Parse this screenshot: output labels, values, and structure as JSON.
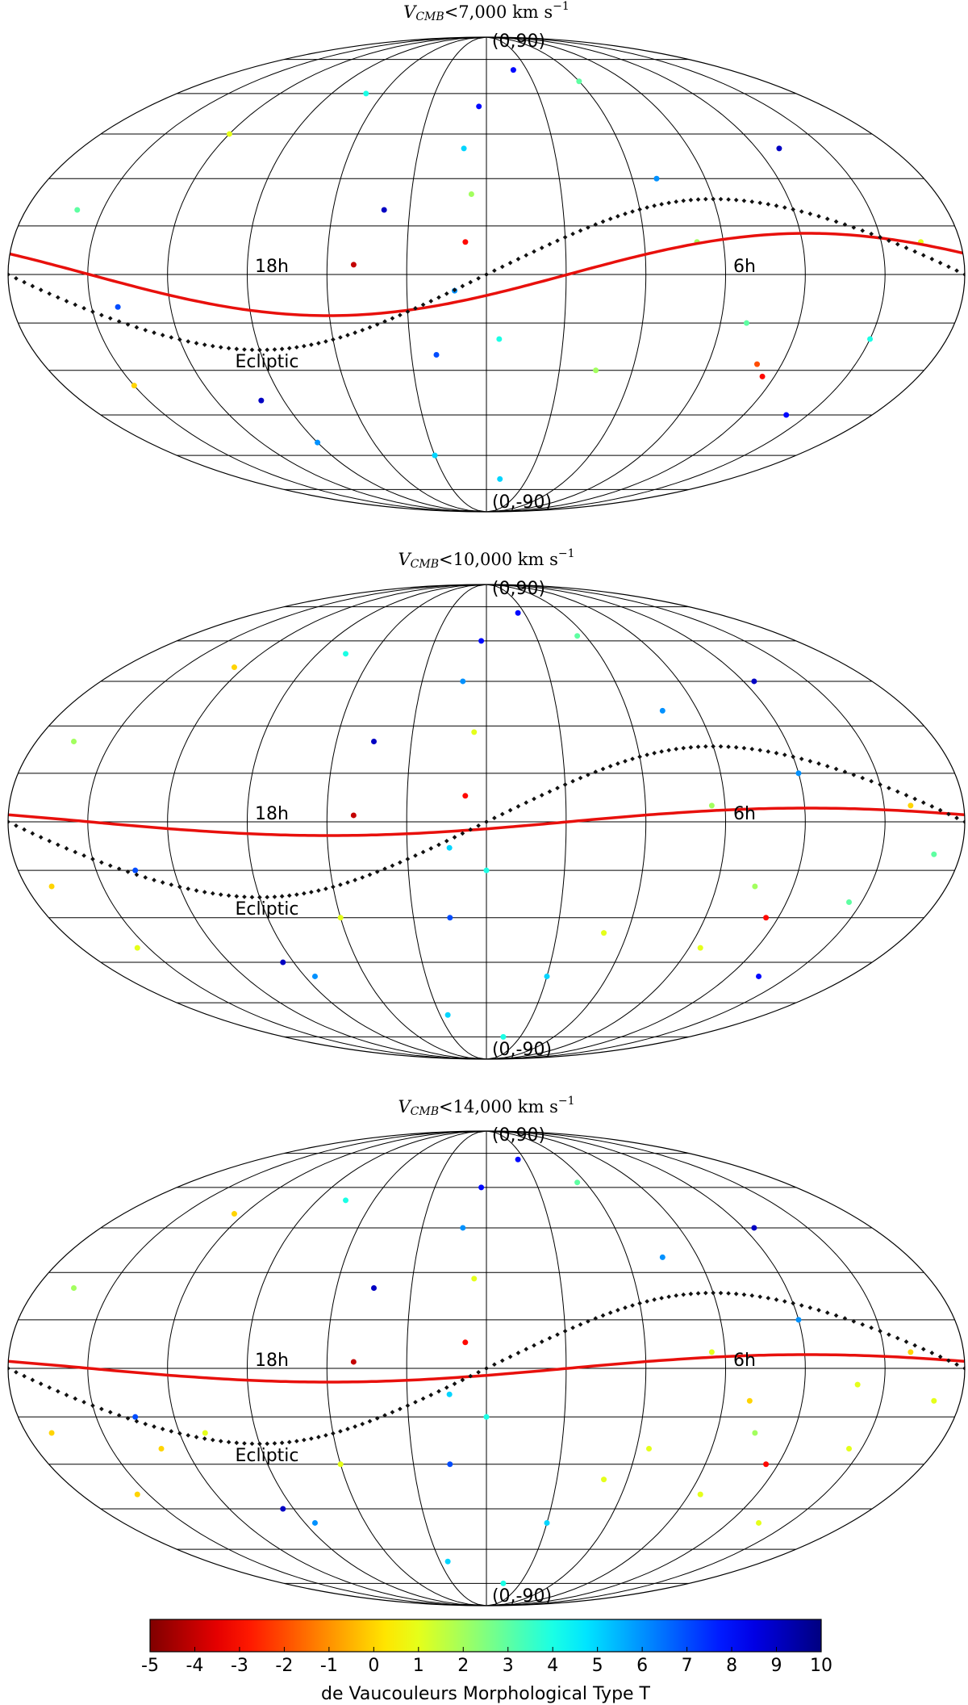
{
  "chart_data": [
    {
      "type": "scatter",
      "title_symbol": "V",
      "title_subscript": "CMB",
      "title_rest": "<7,000 km s",
      "title_superscript": "−1",
      "north_label": "(0,90)",
      "south_label": "(0,-90)",
      "left_label": "18h",
      "right_label": "6h",
      "ecliptic_label": "Ecliptic",
      "lon": [
        -8,
        -6,
        -10,
        -4,
        -12,
        -50,
        -160,
        -140,
        -120,
        -100,
        -70,
        -30,
        20,
        45,
        70,
        100,
        130,
        150,
        165,
        115,
        110,
        -90,
        -20,
        10,
        60,
        140,
        -150,
        5,
        -40,
        80
      ],
      "lat": [
        10,
        25,
        40,
        55,
        -5,
        3,
        20,
        -10,
        45,
        -40,
        60,
        -60,
        70,
        -30,
        30,
        -15,
        40,
        -20,
        10,
        -32,
        -28,
        -55,
        -25,
        -70,
        65,
        -45,
        -35,
        -20,
        20,
        10
      ],
      "T": [
        -3,
        2,
        5,
        8,
        6,
        -4,
        3,
        7,
        1,
        9,
        4,
        5,
        8,
        2,
        6,
        3,
        9,
        4,
        1,
        -3,
        -2,
        6,
        7,
        5,
        3,
        8,
        0,
        4,
        9,
        2
      ]
    },
    {
      "type": "scatter",
      "title_symbol": "V",
      "title_subscript": "CMB",
      "title_rest": "<10,000 km s",
      "title_superscript": "−1",
      "north_label": "(0,90)",
      "south_label": "(0,-90)",
      "left_label": "18h",
      "right_label": "6h",
      "ecliptic_label": "Ecliptic",
      "lon": [
        -8,
        -5,
        -11,
        -3,
        -14,
        -50,
        -165,
        -135,
        -125,
        -95,
        -75,
        -25,
        25,
        50,
        75,
        105,
        125,
        145,
        160,
        115,
        95,
        -85,
        -15,
        15,
        55,
        135,
        -155,
        0,
        -45,
        85,
        -170,
        170,
        -60,
        30,
        120
      ],
      "lat": [
        8,
        28,
        45,
        60,
        -8,
        2,
        25,
        -15,
        50,
        -45,
        55,
        -65,
        72,
        -35,
        35,
        -20,
        45,
        -25,
        5,
        -30,
        -40,
        -50,
        -30,
        -75,
        62,
        -50,
        -40,
        -15,
        25,
        5,
        -20,
        -10,
        -30,
        -50,
        15
      ],
      "T": [
        -3,
        1,
        6,
        8,
        5,
        -4,
        2,
        7,
        0,
        9,
        4,
        5,
        8,
        1,
        6,
        2,
        9,
        3,
        0,
        -3,
        1,
        6,
        7,
        4,
        3,
        8,
        1,
        4,
        9,
        2,
        0,
        3,
        1,
        5,
        6
      ]
    },
    {
      "type": "scatter",
      "title_symbol": "V",
      "title_subscript": "CMB",
      "title_rest": "<14,000 km s",
      "title_superscript": "−1",
      "north_label": "(0,90)",
      "south_label": "(0,-90)",
      "left_label": "18h",
      "right_label": "6h",
      "ecliptic_label": "Ecliptic",
      "lon": [
        -8,
        -5,
        -11,
        -3,
        -14,
        -50,
        -165,
        -135,
        -125,
        -95,
        -75,
        -25,
        25,
        50,
        75,
        105,
        125,
        145,
        160,
        115,
        95,
        -85,
        -15,
        15,
        55,
        135,
        -155,
        0,
        -45,
        85,
        -170,
        170,
        -60,
        30,
        120,
        100,
        140,
        -130,
        -110,
        65
      ],
      "lat": [
        8,
        28,
        45,
        60,
        -8,
        2,
        25,
        -15,
        50,
        -45,
        55,
        -65,
        72,
        -35,
        35,
        -20,
        45,
        -25,
        5,
        -30,
        -40,
        -50,
        -30,
        -75,
        62,
        -50,
        -40,
        -15,
        25,
        5,
        -20,
        -10,
        -30,
        -50,
        15,
        -10,
        -5,
        -25,
        -20,
        -25
      ],
      "T": [
        -3,
        1,
        6,
        8,
        5,
        -4,
        2,
        7,
        0,
        9,
        4,
        5,
        8,
        1,
        6,
        2,
        9,
        1,
        0,
        -3,
        1,
        6,
        7,
        4,
        3,
        1,
        0,
        4,
        9,
        1,
        0,
        1,
        1,
        5,
        6,
        0,
        1,
        0,
        1,
        1
      ]
    },
    {
      "type": "colorbar",
      "label": "de Vaucouleurs Morphological Type T",
      "clim": [
        -5,
        10
      ],
      "ticks": [
        -5,
        -4,
        -3,
        -2,
        -1,
        0,
        1,
        2,
        3,
        4,
        5,
        6,
        7,
        8,
        9,
        10
      ]
    }
  ]
}
